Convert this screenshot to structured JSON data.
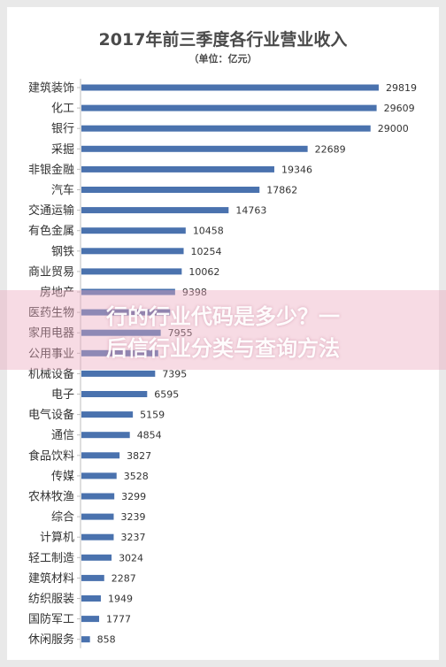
{
  "chart_data": {
    "type": "bar",
    "orientation": "horizontal",
    "title": "2017年前三季度各行业营业收入",
    "subtitle": "（单位：亿元）",
    "categories": [
      "建筑装饰",
      "化工",
      "银行",
      "采掘",
      "非银金融",
      "汽车",
      "交通运输",
      "有色金属",
      "钢铁",
      "商业贸易",
      "房地产",
      "医药生物",
      "家用电器",
      "公用事业",
      "机械设备",
      "电子",
      "电气设备",
      "通信",
      "食品饮料",
      "传媒",
      "农林牧渔",
      "综合",
      "计算机",
      "轻工制造",
      "建筑材料",
      "纺织服装",
      "国防军工",
      "休闲服务"
    ],
    "values": [
      29819,
      29609,
      29000,
      22689,
      19346,
      17862,
      14763,
      10458,
      10254,
      10062,
      9398,
      8900,
      7955,
      7700,
      7395,
      6595,
      5159,
      4854,
      3827,
      3528,
      3299,
      3239,
      3237,
      3024,
      2287,
      1949,
      1777,
      858
    ],
    "value_labels": [
      "29819",
      "29609",
      "29000",
      "22689",
      "19346",
      "17862",
      "14763",
      "10458",
      "10254",
      "10062",
      "9398",
      "",
      "7955",
      "",
      "7395",
      "6595",
      "5159",
      "4854",
      "3827",
      "3528",
      "3299",
      "3239",
      "3237",
      "3024",
      "2287",
      "1949",
      "1777",
      "858"
    ],
    "xlim": [
      0,
      30000
    ],
    "grid": false,
    "legend": "none",
    "bar_color": "#4a72ae"
  },
  "overlay": {
    "line1": "行的行业代码是多少？一",
    "line2": "后信行业分类与查询方法",
    "color": "#eaaabe"
  }
}
